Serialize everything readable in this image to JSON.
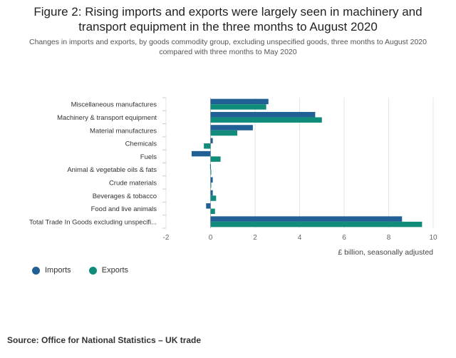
{
  "header": {
    "title": "Figure 2: Rising imports and exports were largely seen in machinery and transport equipment in the three months to August 2020",
    "subtitle": "Changes in imports and exports, by goods commodity group, excluding unspecified goods, three months to August 2020 compared with three months to May 2020"
  },
  "chart_data": {
    "type": "bar",
    "orientation": "horizontal",
    "categories": [
      "Miscellaneous manufactures",
      "Machinery & transport equipment",
      "Material manufactures",
      "Chemicals",
      "Fuels",
      "Animal & vegetable oils & fats",
      "Crude materials",
      "Beverages & tobacco",
      "Food and live animals",
      "Total Trade In Goods excluding unspecifi..."
    ],
    "series": [
      {
        "name": "Imports",
        "color": "#206095",
        "values": [
          2.6,
          4.7,
          1.9,
          0.1,
          -0.85,
          -0.02,
          0.1,
          0.1,
          -0.2,
          8.6
        ]
      },
      {
        "name": "Exports",
        "color": "#118c7b",
        "values": [
          2.5,
          5.0,
          1.2,
          -0.3,
          0.45,
          0.0,
          0.0,
          0.25,
          0.2,
          9.5
        ]
      }
    ],
    "xlim": [
      -2,
      10
    ],
    "xticks": [
      "-2",
      "0",
      "2",
      "4",
      "6",
      "8",
      "10"
    ],
    "xlabel": "£ billion, seasonally adjusted",
    "ylabel": "",
    "grid": "vertical",
    "legend_position": "bottom-left"
  },
  "source": "Source: Office for National Statistics – UK trade"
}
